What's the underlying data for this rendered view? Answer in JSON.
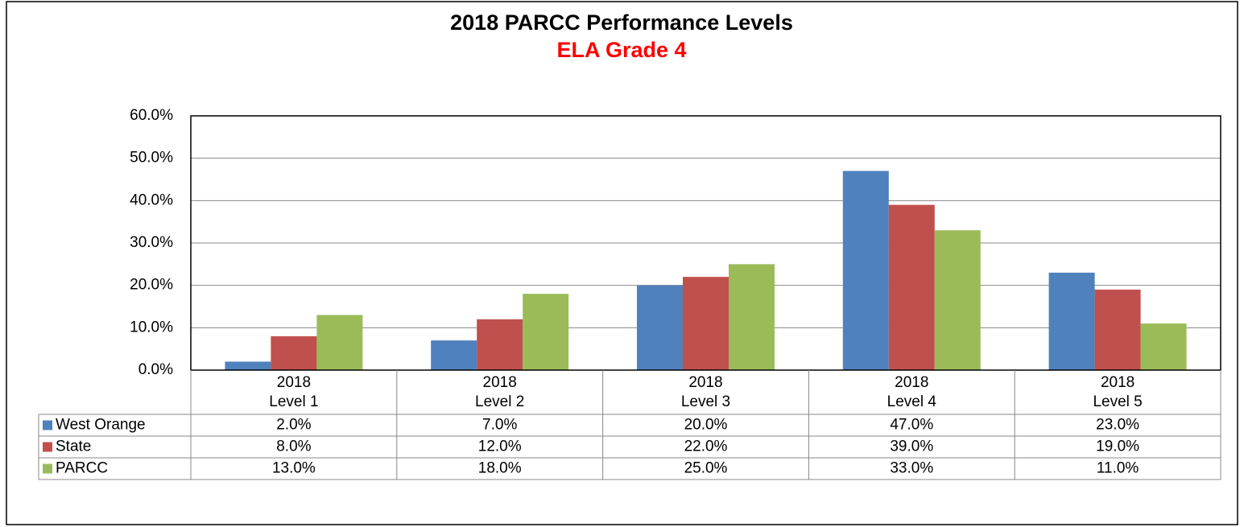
{
  "chart_data": {
    "type": "bar",
    "title": "2018 PARCC Performance Levels",
    "subtitle": "ELA Grade 4",
    "categories": [
      [
        "2018",
        "Level 1"
      ],
      [
        "2018",
        "Level 2"
      ],
      [
        "2018",
        "Level 3"
      ],
      [
        "2018",
        "Level 4"
      ],
      [
        "2018",
        "Level 5"
      ]
    ],
    "series": [
      {
        "name": "West Orange",
        "color": "#4f81bd",
        "values": [
          2,
          7,
          20,
          47,
          23
        ],
        "value_labels": [
          "2.0%",
          "7.0%",
          "20.0%",
          "47.0%",
          "23.0%"
        ]
      },
      {
        "name": "State",
        "color": "#c0504d",
        "values": [
          8,
          12,
          22,
          39,
          19
        ],
        "value_labels": [
          "8.0%",
          "12.0%",
          "22.0%",
          "39.0%",
          "19.0%"
        ]
      },
      {
        "name": "PARCC",
        "color": "#9bbb59",
        "values": [
          13,
          18,
          25,
          33,
          11
        ],
        "value_labels": [
          "13.0%",
          "18.0%",
          "25.0%",
          "33.0%",
          "11.0%"
        ]
      }
    ],
    "ylim": [
      0,
      60
    ],
    "yticks": [
      {
        "value": 0,
        "label": "0.0%"
      },
      {
        "value": 10,
        "label": "10.0%"
      },
      {
        "value": 20,
        "label": "20.0%"
      },
      {
        "value": 30,
        "label": "30.0%"
      },
      {
        "value": 40,
        "label": "40.0%"
      },
      {
        "value": 50,
        "label": "50.0%"
      },
      {
        "value": 60,
        "label": "60.0%"
      }
    ],
    "grid": true
  }
}
